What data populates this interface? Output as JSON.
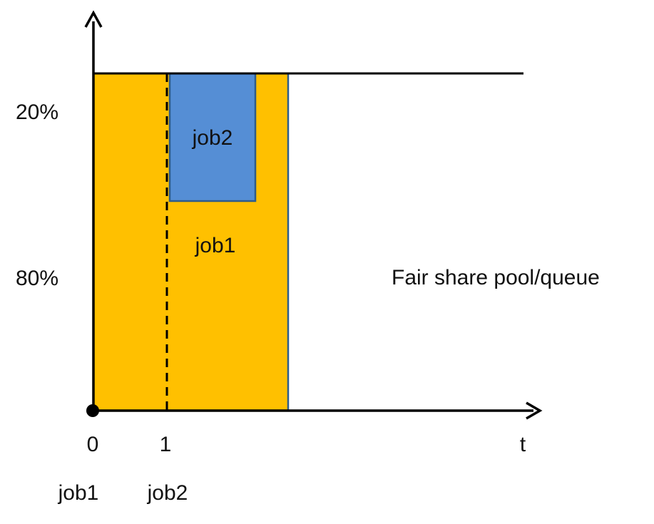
{
  "y_axis": {
    "labels": [
      "20%",
      "80%"
    ]
  },
  "x_axis": {
    "ticks": [
      "0",
      "1"
    ],
    "end_label": "t"
  },
  "arrivals": [
    "job1",
    "job2"
  ],
  "regions": {
    "job1": "job1",
    "job2": "job2"
  },
  "pool_label": "Fair share pool/queue",
  "colors": {
    "job1_fill": "#FFC000",
    "job2_fill": "#558ED5",
    "region_border": "#2E5C8A",
    "axis": "#000000"
  }
}
